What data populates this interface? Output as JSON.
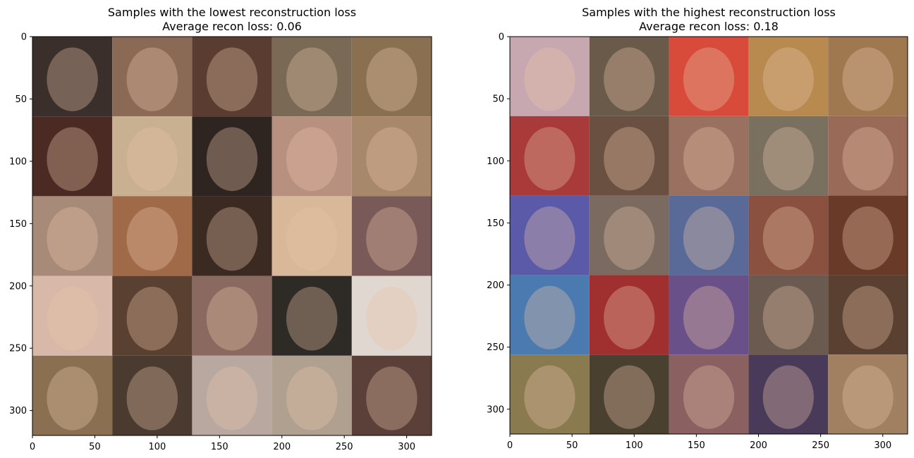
{
  "panels": [
    {
      "title_line1": "Samples with the lowest reconstruction loss",
      "title_line2": "Average recon loss: 0.06",
      "average_recon_loss": 0.06
    },
    {
      "title_line1": "Samples with the highest reconstruction loss",
      "title_line2": "Average recon loss: 0.18",
      "average_recon_loss": 0.18
    }
  ],
  "chart_data": [
    {
      "type": "image",
      "title": "Samples with the lowest reconstruction loss\nAverage recon loss: 0.06",
      "xlim": [
        0,
        320
      ],
      "ylim": [
        320,
        0
      ],
      "xticks": [
        0,
        50,
        100,
        150,
        200,
        250,
        300
      ],
      "yticks": [
        0,
        50,
        100,
        150,
        200,
        250,
        300
      ],
      "grid": {
        "rows": 5,
        "cols": 5,
        "tile_size": 64
      },
      "tile_colors": [
        [
          "#3a2f2b",
          "#8a6a55",
          "#5a3d30",
          "#7a6a55",
          "#8a7050"
        ],
        [
          "#4a2a22",
          "#c8b090",
          "#2e2420",
          "#b89080",
          "#a8886a"
        ],
        [
          "#a88a78",
          "#a06a48",
          "#3a2a22",
          "#d8b898",
          "#7a5a58"
        ],
        [
          "#d8b8a8",
          "#5a4030",
          "#8a6a60",
          "#2e2a26",
          "#e0d8d0"
        ],
        [
          "#8a7050",
          "#4a3a30",
          "#b8a8a0",
          "#b0a090",
          "#5a4038"
        ]
      ]
    },
    {
      "type": "image",
      "title": "Samples with the highest reconstruction loss\nAverage recon loss: 0.18",
      "xlim": [
        0,
        320
      ],
      "ylim": [
        320,
        0
      ],
      "xticks": [
        0,
        50,
        100,
        150,
        200,
        250,
        300
      ],
      "yticks": [
        0,
        50,
        100,
        150,
        200,
        250,
        300
      ],
      "grid": {
        "rows": 5,
        "cols": 5,
        "tile_size": 64
      },
      "tile_colors": [
        [
          "#c8a8b0",
          "#6a5a4a",
          "#d84a3a",
          "#b88a50",
          "#a07850"
        ],
        [
          "#a83a3a",
          "#6a5040",
          "#9a7060",
          "#7a7060",
          "#9a6a58"
        ],
        [
          "#5a5aa8",
          "#7a6a60",
          "#5a6a98",
          "#8a5040",
          "#6a3a28"
        ],
        [
          "#4a7ab0",
          "#a03030",
          "#6a5088",
          "#6a5a50",
          "#5a4030"
        ],
        [
          "#8a7a50",
          "#4a4030",
          "#8a6060",
          "#4a3a5a",
          "#a08060"
        ]
      ]
    }
  ]
}
